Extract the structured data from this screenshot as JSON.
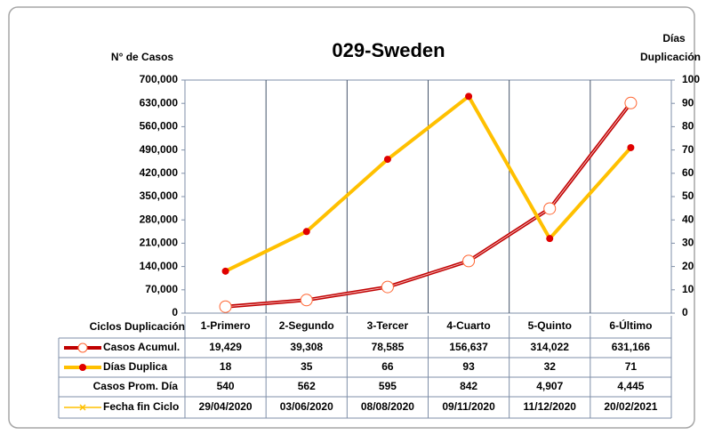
{
  "chart_data": {
    "type": "line",
    "title": "029-Sweden",
    "ylabel": "N° de Casos",
    "y2label": [
      "Días",
      "Duplicación"
    ],
    "table_header": "Ciclos Duplicación",
    "categories": [
      "1-Primero",
      "2-Segundo",
      "3-Tercer",
      "4-Cuarto",
      "5-Quinto",
      "6-Último"
    ],
    "series": [
      {
        "name": "Casos Acumul.",
        "color": "#c00000",
        "marker_color": "#ff6633",
        "values": [
          19429,
          39308,
          78585,
          156637,
          314022,
          631166
        ],
        "value_labels": [
          "19,429",
          "39,308",
          "78,585",
          "156,637",
          "314,022",
          "631,166"
        ]
      },
      {
        "name": "Días Duplica",
        "color": "#ffc000",
        "marker_color": "#e00000",
        "axis": "y2",
        "values": [
          18,
          35,
          66,
          93,
          32,
          71
        ]
      }
    ],
    "table_rows": [
      {
        "name": "Casos Prom. Día",
        "values": [
          540,
          562,
          595,
          842,
          4907,
          4445
        ],
        "value_labels": [
          "540",
          "562",
          "595",
          "842",
          "4,907",
          "4,445"
        ]
      },
      {
        "name": "Fecha fin Ciclo",
        "color": "#ffc000",
        "values": [
          "29/04/2020",
          "03/06/2020",
          "08/08/2020",
          "09/11/2020",
          "11/12/2020",
          "20/02/2021"
        ]
      }
    ],
    "ylim": [
      0,
      700000
    ],
    "yticks": [
      0,
      {
        "value": 70000,
        "label": "70,000"
      },
      {
        "value": 140000,
        "label": "140,000"
      },
      {
        "value": 210000,
        "label": "210,000"
      },
      {
        "value": 280000,
        "label": "280,000"
      },
      {
        "value": 350000,
        "label": "350,000"
      },
      {
        "value": 420000,
        "label": "420,000"
      },
      {
        "value": 490000,
        "label": "490,000"
      },
      {
        "value": 560000,
        "label": "560,000"
      },
      {
        "value": 630000,
        "label": "630,000"
      },
      {
        "value": 700000,
        "label": "700,000"
      }
    ],
    "y2lim": [
      0,
      100
    ],
    "y2ticks": [
      0,
      10,
      20,
      30,
      40,
      50,
      60,
      70,
      80,
      90,
      100
    ]
  }
}
